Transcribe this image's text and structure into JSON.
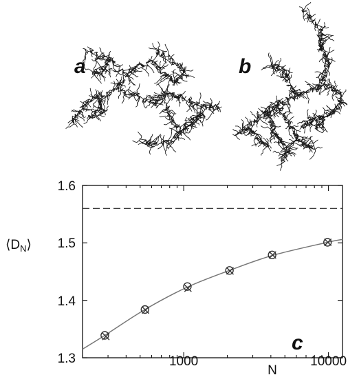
{
  "panels": {
    "a": {
      "label": "a",
      "description": ""
    },
    "b": {
      "label": "b",
      "description": ""
    },
    "c": {
      "label": "c"
    }
  },
  "chart_data": {
    "type": "scatter",
    "xlabel": "N",
    "ylabel": "⟨D_N⟩",
    "ylabel_main": "⟨D",
    "ylabel_sub": "N",
    "ylabel_close": "⟩",
    "xscale": "log",
    "xlim": [
      200,
      12500
    ],
    "ylim": [
      1.3,
      1.6
    ],
    "xticks": [
      1000,
      10000
    ],
    "xtick_labels": [
      "1000",
      "10000"
    ],
    "yticks": [
      1.3,
      1.4,
      1.5,
      1.6
    ],
    "ytick_labels": [
      "1.3",
      "1.4",
      "1.5",
      "1.6"
    ],
    "grid": false,
    "legend": "none",
    "series": [
      {
        "marker": "circle",
        "x": [
          285,
          540,
          1060,
          2070,
          4080,
          9850
        ],
        "y": [
          1.339,
          1.384,
          1.424,
          1.452,
          1.479,
          1.501
        ]
      },
      {
        "marker": "cross",
        "x": [
          290,
          545,
          1070,
          2090,
          4110,
          9900
        ],
        "y": [
          1.337,
          1.383,
          1.421,
          1.451,
          1.479,
          1.501
        ]
      }
    ],
    "fit_curve": {
      "style": "solid",
      "x": [
        200,
        285,
        540,
        1060,
        2070,
        4080,
        9850,
        12500
      ],
      "y": [
        1.315,
        1.339,
        1.384,
        1.423,
        1.452,
        1.478,
        1.501,
        1.506
      ]
    },
    "asymptote": {
      "style": "dashed",
      "y": 1.56
    },
    "colors": {
      "markers": "#333333",
      "curve": "#777777",
      "axes": "#111111"
    }
  }
}
